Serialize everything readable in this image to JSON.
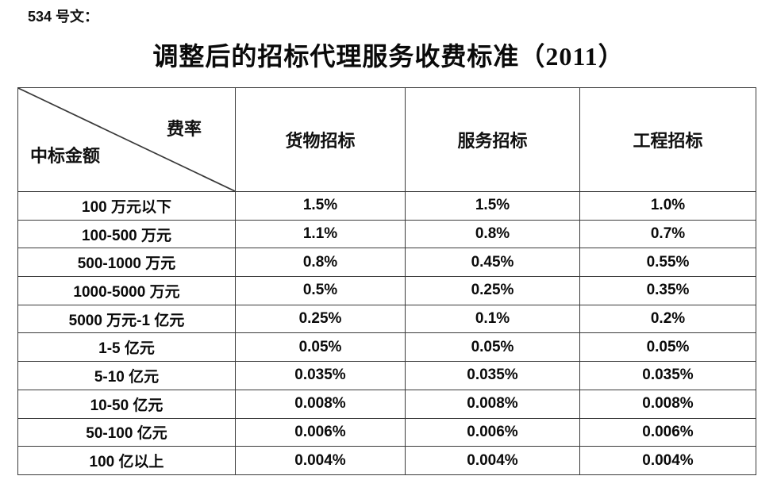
{
  "doc_number": "534 号文：",
  "title": "调整后的招标代理服务收费标准（2011）",
  "table": {
    "corner": {
      "top_right": "费率",
      "bottom_left": "中标金额"
    },
    "columns": [
      "货物招标",
      "服务招标",
      "工程招标"
    ],
    "rows": [
      {
        "label": "100 万元以下",
        "values": [
          "1.5%",
          "1.5%",
          "1.0%"
        ]
      },
      {
        "label": "100-500 万元",
        "values": [
          "1.1%",
          "0.8%",
          "0.7%"
        ]
      },
      {
        "label": "500-1000 万元",
        "values": [
          "0.8%",
          "0.45%",
          "0.55%"
        ]
      },
      {
        "label": "1000-5000 万元",
        "values": [
          "0.5%",
          "0.25%",
          "0.35%"
        ]
      },
      {
        "label": "5000 万元-1 亿元",
        "values": [
          "0.25%",
          "0.1%",
          "0.2%"
        ]
      },
      {
        "label": "1-5 亿元",
        "values": [
          "0.05%",
          "0.05%",
          "0.05%"
        ]
      },
      {
        "label": "5-10 亿元",
        "values": [
          "0.035%",
          "0.035%",
          "0.035%"
        ]
      },
      {
        "label": "10-50 亿元",
        "values": [
          "0.008%",
          "0.008%",
          "0.008%"
        ]
      },
      {
        "label": "50-100 亿元",
        "values": [
          "0.006%",
          "0.006%",
          "0.006%"
        ]
      },
      {
        "label": "100 亿以上",
        "values": [
          "0.004%",
          "0.004%",
          "0.004%"
        ]
      }
    ]
  },
  "colors": {
    "background": "#ffffff",
    "text": "#000000",
    "border": "#3a3a3a"
  }
}
